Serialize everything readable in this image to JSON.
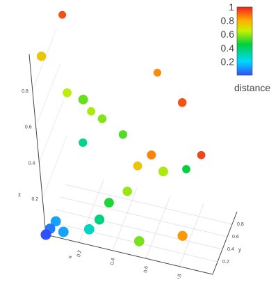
{
  "chart_data": {
    "type": "scatter3d",
    "axes": {
      "x": {
        "label": "x",
        "ticks": [
          "0.2",
          "0.4",
          "0.6",
          "0.8"
        ],
        "range": [
          0,
          1
        ]
      },
      "y": {
        "label": "y",
        "ticks": [
          "0.2",
          "0.4",
          "0.6",
          "0.8"
        ],
        "range": [
          0,
          1
        ]
      },
      "z": {
        "label": "z",
        "ticks": [
          "0.2",
          "0.4",
          "0.6",
          "0.8"
        ],
        "range": [
          0,
          1
        ]
      }
    },
    "colorbar": {
      "title": "distance",
      "ticks": [
        "0.2",
        "0.4",
        "0.6",
        "0.8",
        "1"
      ],
      "range": [
        0,
        1
      ],
      "colorscale": "jet"
    },
    "grid": true,
    "points": [
      {
        "x": 0.0,
        "y": 0.0,
        "z": 0.0,
        "distance": 0.0
      },
      {
        "x": 0.02,
        "y": 0.05,
        "z": 0.02,
        "distance": 0.06
      },
      {
        "x": 0.05,
        "y": 0.1,
        "z": 0.05,
        "distance": 0.12
      },
      {
        "x": 0.1,
        "y": 0.05,
        "z": 0.02,
        "distance": 0.12
      },
      {
        "x": 0.25,
        "y": 0.1,
        "z": 0.05,
        "distance": 0.28
      },
      {
        "x": 0.3,
        "y": 0.2,
        "z": 0.08,
        "distance": 0.37
      },
      {
        "x": 0.35,
        "y": 0.3,
        "z": 0.15,
        "distance": 0.48
      },
      {
        "x": 0.45,
        "y": 0.4,
        "z": 0.2,
        "distance": 0.6
      },
      {
        "x": 0.5,
        "y": 0.55,
        "z": 0.3,
        "distance": 0.75
      },
      {
        "x": 0.6,
        "y": 0.5,
        "z": 0.4,
        "distance": 0.86
      },
      {
        "x": 0.55,
        "y": 0.1,
        "z": 0.05,
        "distance": 0.57
      },
      {
        "x": 0.8,
        "y": 0.2,
        "z": 0.1,
        "distance": 0.83
      },
      {
        "x": 0.85,
        "y": 0.8,
        "z": 0.35,
        "distance": 0.95
      },
      {
        "x": 0.05,
        "y": 0.95,
        "z": 0.9,
        "distance": 0.93
      },
      {
        "x": 0.0,
        "y": 0.4,
        "z": 0.85,
        "distance": 0.75
      },
      {
        "x": 0.1,
        "y": 0.6,
        "z": 0.6,
        "distance": 0.64
      },
      {
        "x": 0.2,
        "y": 0.8,
        "z": 0.45,
        "distance": 0.62
      },
      {
        "x": 0.3,
        "y": 0.6,
        "z": 0.5,
        "distance": 0.58
      },
      {
        "x": 0.15,
        "y": 0.7,
        "z": 0.3,
        "distance": 0.35
      },
      {
        "x": 0.25,
        "y": 0.3,
        "z": 0.7,
        "distance": 0.55
      },
      {
        "x": 0.4,
        "y": 0.7,
        "z": 0.4,
        "distance": 0.53
      },
      {
        "x": 0.6,
        "y": 0.95,
        "z": 0.7,
        "distance": 0.85
      },
      {
        "x": 0.7,
        "y": 0.3,
        "z": 0.4,
        "distance": 0.62
      },
      {
        "x": 0.8,
        "y": 0.6,
        "z": 0.7,
        "distance": 0.93
      },
      {
        "x": 0.75,
        "y": 0.8,
        "z": 0.25,
        "distance": 0.45
      }
    ]
  }
}
